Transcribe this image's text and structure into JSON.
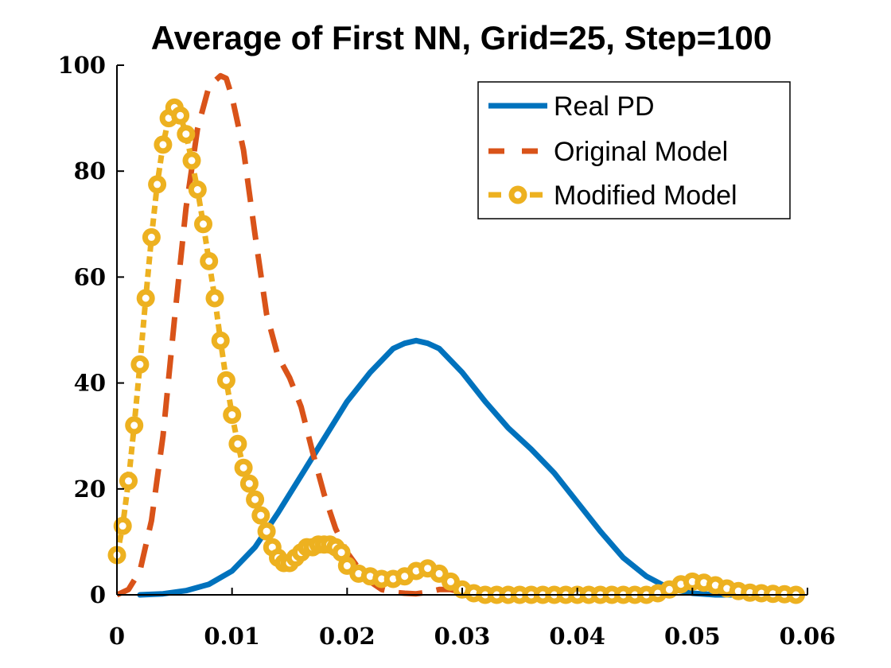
{
  "chart_data": {
    "type": "line",
    "title": "Average of First NN, Grid=25, Step=100",
    "xlabel": "",
    "ylabel": "",
    "xlim": [
      0,
      0.06
    ],
    "ylim": [
      0,
      100
    ],
    "xticks": [
      0,
      0.01,
      0.02,
      0.03,
      0.04,
      0.05,
      0.06
    ],
    "xtick_labels": [
      "0",
      "0.01",
      "0.02",
      "0.03",
      "0.04",
      "0.05",
      "0.06"
    ],
    "yticks": [
      0,
      20,
      40,
      60,
      80,
      100
    ],
    "ytick_labels": [
      "0",
      "20",
      "40",
      "60",
      "80",
      "100"
    ],
    "grid": false,
    "legend_position": "top-right",
    "series": [
      {
        "name": "Real PD",
        "color": "#0072BD",
        "style": "solid",
        "x": [
          0.002,
          0.004,
          0.006,
          0.008,
          0.01,
          0.012,
          0.014,
          0.016,
          0.018,
          0.02,
          0.022,
          0.024,
          0.025,
          0.026,
          0.027,
          0.028,
          0.03,
          0.032,
          0.034,
          0.036,
          0.038,
          0.04,
          0.042,
          0.044,
          0.046,
          0.048,
          0.05,
          0.052,
          0.054
        ],
        "y": [
          0,
          0.2,
          0.8,
          2,
          4.5,
          9,
          15.5,
          22.5,
          29.5,
          36.5,
          42,
          46.5,
          47.5,
          48,
          47.5,
          46.5,
          42,
          36.5,
          31.5,
          27.5,
          23,
          17.5,
          12,
          7,
          3.5,
          1.2,
          0.3,
          0,
          0
        ]
      },
      {
        "name": "Original Model",
        "color": "#D95319",
        "style": "dashed",
        "x": [
          0,
          0.001,
          0.002,
          0.003,
          0.004,
          0.005,
          0.006,
          0.007,
          0.008,
          0.009,
          0.0095,
          0.01,
          0.011,
          0.012,
          0.013,
          0.014,
          0.015,
          0.016,
          0.017,
          0.018,
          0.019,
          0.02,
          0.021,
          0.022,
          0.023,
          0.024,
          0.025,
          0.026,
          0.027,
          0.028,
          0.029,
          0.03,
          0.031,
          0.032,
          0.033,
          0.034,
          0.035
        ],
        "y": [
          0,
          1,
          4.5,
          14,
          30,
          52,
          73,
          88,
          96,
          98,
          97.5,
          94,
          84,
          68,
          53,
          45,
          41,
          35.5,
          27,
          19,
          12.5,
          8,
          5,
          2.5,
          1,
          0.5,
          0.3,
          0.2,
          0.5,
          1,
          1,
          0.5,
          0.3,
          0.2,
          0.1,
          0.05,
          0
        ]
      },
      {
        "name": "Modified Model",
        "color": "#EDB120",
        "style": "dashed-circle",
        "x": [
          0,
          0.0005,
          0.001,
          0.0015,
          0.002,
          0.0025,
          0.003,
          0.0035,
          0.004,
          0.0045,
          0.005,
          0.0055,
          0.006,
          0.0065,
          0.007,
          0.0075,
          0.008,
          0.0085,
          0.009,
          0.0095,
          0.01,
          0.0105,
          0.011,
          0.0115,
          0.012,
          0.0125,
          0.013,
          0.0135,
          0.014,
          0.0145,
          0.015,
          0.0155,
          0.016,
          0.0165,
          0.017,
          0.0175,
          0.018,
          0.0185,
          0.019,
          0.0195,
          0.02,
          0.021,
          0.022,
          0.023,
          0.024,
          0.025,
          0.026,
          0.027,
          0.028,
          0.029,
          0.03,
          0.031,
          0.032,
          0.033,
          0.034,
          0.035,
          0.036,
          0.037,
          0.038,
          0.039,
          0.04,
          0.041,
          0.042,
          0.043,
          0.044,
          0.045,
          0.046,
          0.047,
          0.048,
          0.049,
          0.05,
          0.051,
          0.052,
          0.053,
          0.054,
          0.055,
          0.056,
          0.057,
          0.058,
          0.059
        ],
        "y": [
          7.5,
          13,
          21.5,
          32,
          43.5,
          56,
          67.5,
          77.5,
          85,
          90,
          92,
          90.5,
          87,
          82,
          76.5,
          70,
          63,
          56,
          48,
          40.5,
          34,
          28.5,
          24,
          21,
          18,
          15,
          12,
          9,
          7,
          6,
          6,
          7,
          8,
          9,
          9,
          9.5,
          9.5,
          9.5,
          9,
          8,
          5.5,
          4,
          3.5,
          3,
          3,
          3.5,
          4.5,
          5,
          4,
          2.5,
          1,
          0.3,
          0,
          0,
          0,
          0,
          0,
          0,
          0,
          0,
          0,
          0,
          0,
          0,
          0,
          0,
          0,
          0.3,
          1,
          2,
          2.5,
          2.3,
          1.8,
          1.2,
          0.7,
          0.4,
          0.3,
          0.2,
          0.1,
          0
        ]
      }
    ]
  }
}
